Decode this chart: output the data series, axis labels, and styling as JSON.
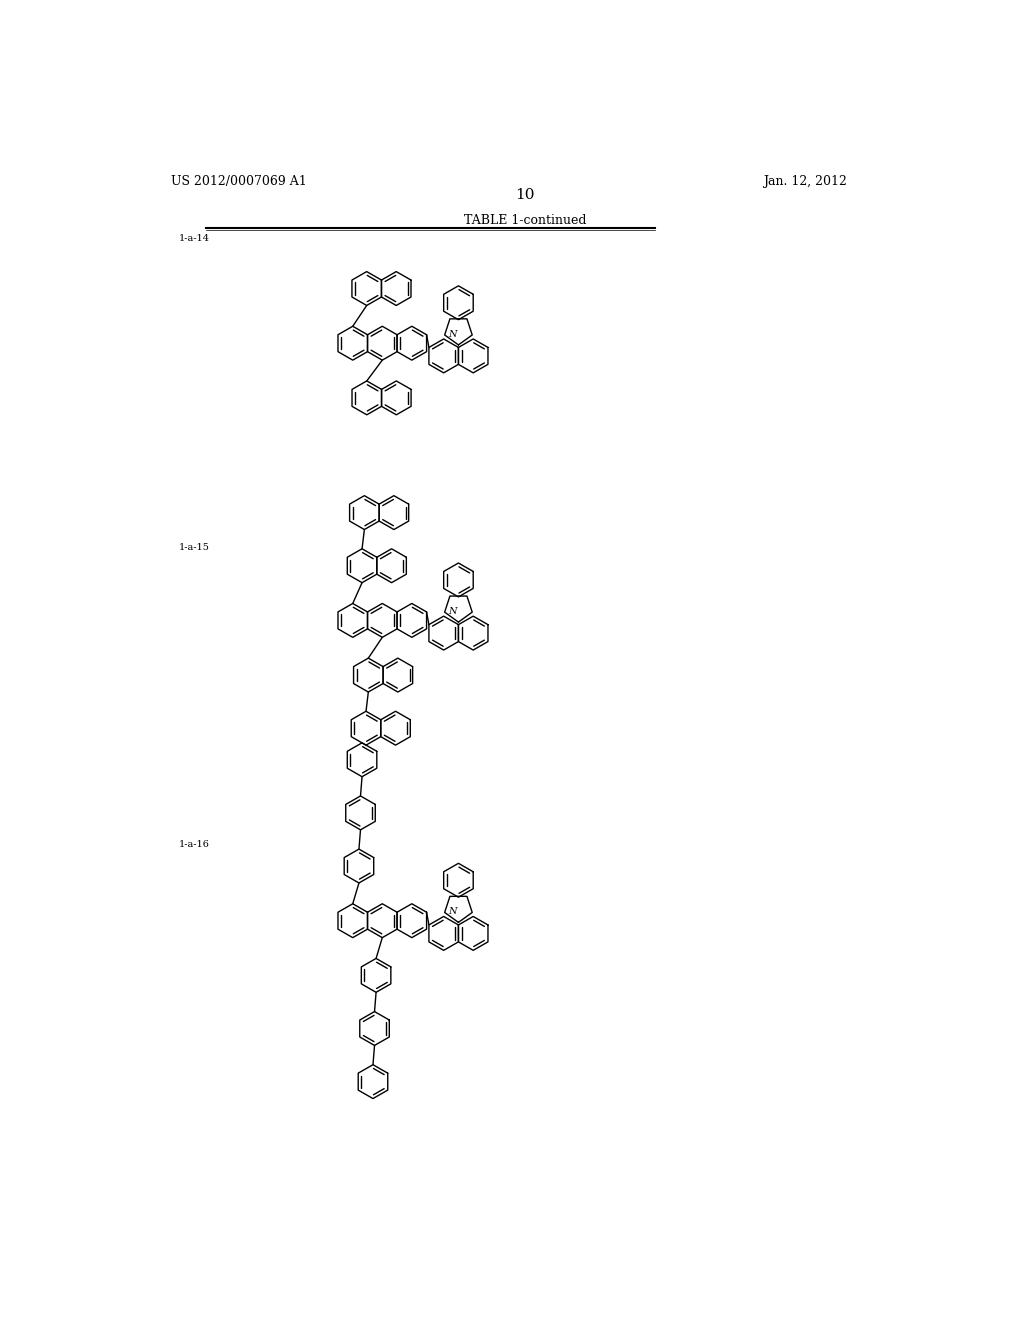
{
  "title_left": "US 2012/0007069 A1",
  "title_right": "Jan. 12, 2012",
  "page_number": "10",
  "table_title": "TABLE 1-continued",
  "compound_labels": [
    "1-a-14",
    "1-a-15",
    "1-a-16"
  ],
  "background_color": "#ffffff",
  "line_color": "#000000",
  "text_color": "#000000",
  "header_fontsize": 9,
  "label_fontsize": 7,
  "page_fontsize": 11,
  "lw": 1.0
}
